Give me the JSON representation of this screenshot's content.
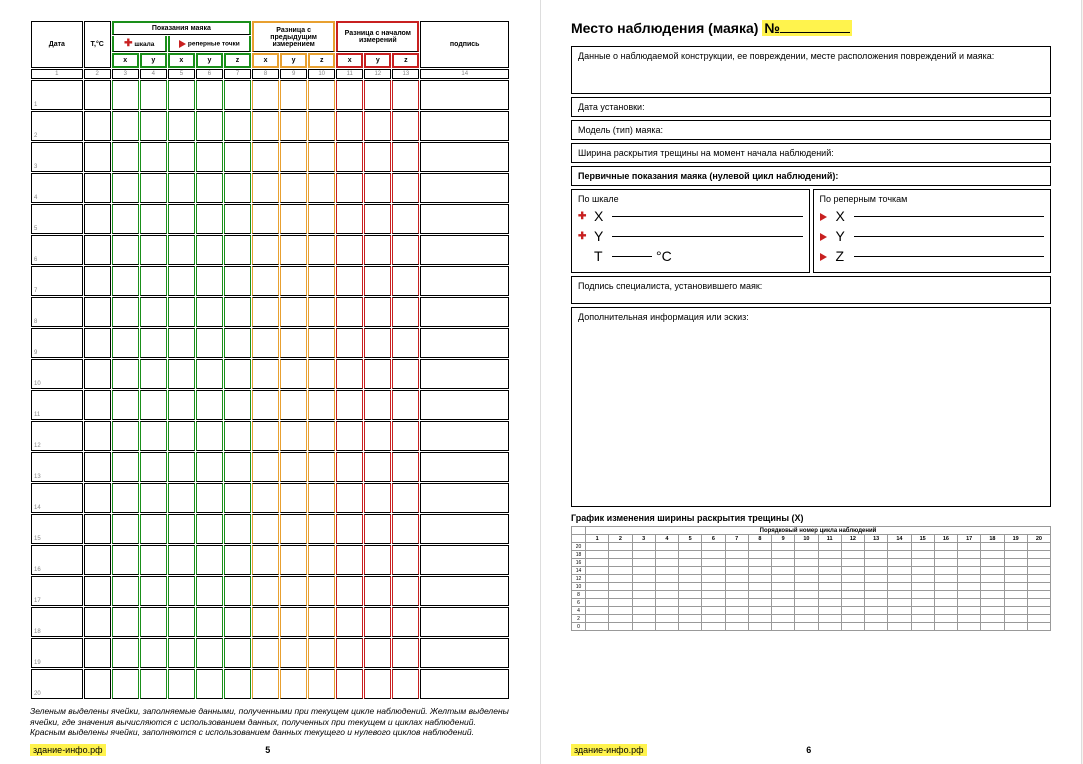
{
  "page5": {
    "headers": {
      "date": "Дата",
      "temp": "T,°C",
      "readings": "Показания маяка",
      "scale": "шкала",
      "ref_points": "реперные точки",
      "diff_prev": "Разница с предыдущим измерением",
      "diff_start": "Разница с началом измерений",
      "signature": "подпись",
      "x": "x",
      "y": "y",
      "z": "z"
    },
    "col_numbers": [
      "1",
      "2",
      "3",
      "4",
      "5",
      "6",
      "7",
      "8",
      "9",
      "10",
      "11",
      "12",
      "13",
      "14"
    ],
    "row_labels": [
      "1",
      "2",
      "3",
      "4",
      "5",
      "6",
      "7",
      "8",
      "9",
      "10",
      "11",
      "12",
      "13",
      "14",
      "15",
      "16",
      "17",
      "18",
      "19",
      "20"
    ],
    "footnote": "Зеленым выделены ячейки, заполняемые данными, полученными при текущем цикле наблюдений. Желтым выделены ячейки, где значения вычисляются с использованием данных, полученных при текущем и циклах наблюдений. Красным выделены ячейки, заполняются с использованием данных текущего и нулевого циклов наблюдений.",
    "page_number": "5",
    "site": "здание-инфо.рф",
    "colors": {
      "green": "#1a8f1a",
      "orange": "#e8a030",
      "red": "#c82020"
    }
  },
  "page6": {
    "title_a": "Место наблюдения (маяка)",
    "title_b": "№",
    "boxes": {
      "damage": "Данные о наблюдаемой конструкции, ее повреждении, месте расположения повреждений и маяка:",
      "install_date": "Дата установки:",
      "model": "Модель (тип) маяка:",
      "crack_width": "Ширина раскрытия трещины на момент начала наблюдений:",
      "initial": "Первичные показания маяка (нулевой цикл наблюдений):",
      "by_scale": "По шкале",
      "by_ref": "По реперным точкам",
      "specialist": "Подпись специалиста, установившего маяк:",
      "extra": "Дополнительная информация или эскиз:"
    },
    "scale_labels": {
      "x": "X",
      "y": "Y",
      "t": "T",
      "tc": "°C",
      "z": "Z"
    },
    "chart_title": "График изменения ширины раскрытия трещины (X)",
    "chart_caption": "Порядковый номер цикла наблюдений",
    "chart_x": [
      "1",
      "2",
      "3",
      "4",
      "5",
      "6",
      "7",
      "8",
      "9",
      "10",
      "11",
      "12",
      "13",
      "14",
      "15",
      "16",
      "17",
      "18",
      "19",
      "20"
    ],
    "chart_y": [
      "20",
      "18",
      "16",
      "14",
      "12",
      "10",
      "8",
      "6",
      "4",
      "2",
      "0"
    ],
    "page_number": "6",
    "site": "здание-инфо.рф"
  }
}
